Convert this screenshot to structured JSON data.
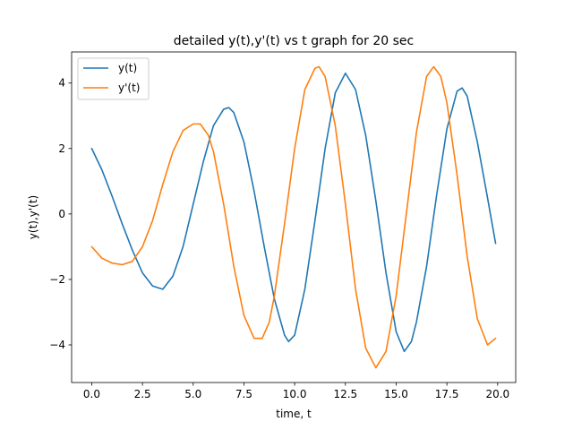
{
  "chart_data": {
    "type": "line",
    "title": "detailed y(t),y'(t) vs t graph for 20 sec",
    "xlabel": "time, t",
    "ylabel": "y(t),y'(t)",
    "xlim": [
      -0.99,
      20.89
    ],
    "ylim": [
      -5.15,
      4.95
    ],
    "xticks": [
      0.0,
      2.5,
      5.0,
      7.5,
      10.0,
      12.5,
      15.0,
      17.5,
      20.0
    ],
    "xtick_labels": [
      "0.0",
      "2.5",
      "5.0",
      "7.5",
      "10.0",
      "12.5",
      "15.0",
      "17.5",
      "20.0"
    ],
    "yticks": [
      -4,
      -2,
      0,
      2,
      4
    ],
    "ytick_labels": [
      "−4",
      "−2",
      "0",
      "2",
      "4"
    ],
    "grid": false,
    "legend": "upper-left",
    "series": [
      {
        "name": "y(t)",
        "color": "#1f77b4",
        "x": [
          0.0,
          0.5,
          1.0,
          1.5,
          2.0,
          2.5,
          3.0,
          3.5,
          4.0,
          4.5,
          5.0,
          5.5,
          6.0,
          6.5,
          6.75,
          7.0,
          7.5,
          8.0,
          8.5,
          9.0,
          9.5,
          9.7,
          10.0,
          10.5,
          11.0,
          11.5,
          12.0,
          12.5,
          13.0,
          13.5,
          14.0,
          14.5,
          15.0,
          15.4,
          15.75,
          16.0,
          16.5,
          17.0,
          17.5,
          18.0,
          18.25,
          18.5,
          19.0,
          19.5,
          19.9
        ],
        "y": [
          2.0,
          1.35,
          0.55,
          -0.3,
          -1.1,
          -1.8,
          -2.2,
          -2.3,
          -1.9,
          -1.0,
          0.3,
          1.6,
          2.7,
          3.2,
          3.25,
          3.1,
          2.2,
          0.7,
          -1.0,
          -2.6,
          -3.7,
          -3.9,
          -3.7,
          -2.3,
          -0.2,
          2.0,
          3.7,
          4.3,
          3.8,
          2.4,
          0.4,
          -1.8,
          -3.6,
          -4.2,
          -3.9,
          -3.3,
          -1.6,
          0.6,
          2.6,
          3.75,
          3.85,
          3.6,
          2.2,
          0.5,
          -0.9
        ]
      },
      {
        "name": "y'(t)",
        "color": "#ff7f0e",
        "x": [
          0.0,
          0.5,
          1.0,
          1.5,
          2.0,
          2.5,
          3.0,
          3.5,
          4.0,
          4.5,
          5.0,
          5.35,
          5.75,
          6.0,
          6.5,
          7.0,
          7.5,
          8.0,
          8.4,
          8.75,
          9.0,
          9.5,
          10.0,
          10.5,
          11.0,
          11.2,
          11.5,
          12.0,
          12.5,
          13.0,
          13.5,
          14.0,
          14.5,
          15.0,
          15.5,
          16.0,
          16.5,
          16.85,
          17.2,
          17.5,
          18.0,
          18.5,
          19.0,
          19.5,
          19.9
        ],
        "y": [
          -1.0,
          -1.35,
          -1.5,
          -1.55,
          -1.45,
          -1.0,
          -0.2,
          0.9,
          1.9,
          2.55,
          2.75,
          2.75,
          2.4,
          1.9,
          0.3,
          -1.6,
          -3.1,
          -3.8,
          -3.8,
          -3.3,
          -2.5,
          -0.3,
          2.0,
          3.8,
          4.45,
          4.5,
          4.2,
          2.7,
          0.3,
          -2.3,
          -4.1,
          -4.7,
          -4.2,
          -2.5,
          0.0,
          2.5,
          4.2,
          4.5,
          4.2,
          3.4,
          1.2,
          -1.3,
          -3.2,
          -4.0,
          -3.8
        ]
      }
    ]
  }
}
